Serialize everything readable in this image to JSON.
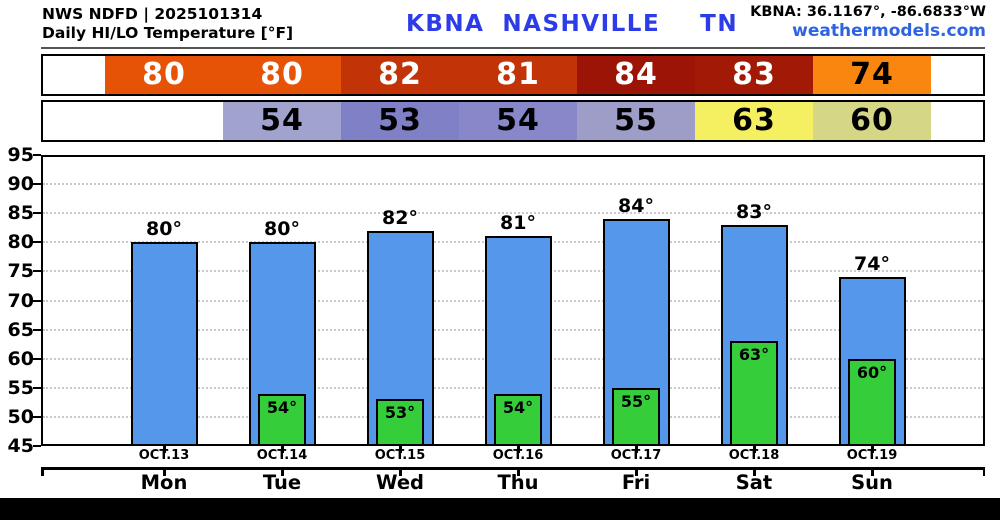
{
  "header": {
    "model_line": "NWS NDFD | 2025101314",
    "product_line": "Daily HI/LO Temperature [°F]",
    "station_id": "KBNA",
    "station_name": "NASHVILLE",
    "station_state": "TN",
    "coords": "KBNA: 36.1167°, -86.6833°W",
    "site": "weathermodels.com",
    "title_color": "#2b3ce8",
    "site_color": "#2e63e2"
  },
  "temp_strip": {
    "hi_row": [
      {
        "value": "",
        "bg": "#ffffff",
        "fg": "#000000"
      },
      {
        "value": "80",
        "bg": "#e65306",
        "fg": "#ffffff"
      },
      {
        "value": "80",
        "bg": "#e65306",
        "fg": "#ffffff"
      },
      {
        "value": "82",
        "bg": "#c23307",
        "fg": "#ffffff"
      },
      {
        "value": "81",
        "bg": "#c23307",
        "fg": "#ffffff"
      },
      {
        "value": "84",
        "bg": "#9c1405",
        "fg": "#ffffff"
      },
      {
        "value": "83",
        "bg": "#a21a06",
        "fg": "#ffffff"
      },
      {
        "value": "74",
        "bg": "#f9860f",
        "fg": "#000000"
      },
      {
        "value": "",
        "bg": "#ffffff",
        "fg": "#000000"
      }
    ],
    "lo_row": [
      {
        "value": "",
        "bg": "#ffffff",
        "fg": "#000000"
      },
      {
        "value": "54",
        "bg": "#a2a2ce",
        "fg": "#000000"
      },
      {
        "value": "53",
        "bg": "#8080c6",
        "fg": "#000000"
      },
      {
        "value": "54",
        "bg": "#8787c9",
        "fg": "#000000"
      },
      {
        "value": "55",
        "bg": "#9d9dc8",
        "fg": "#000000"
      },
      {
        "value": "63",
        "bg": "#f5ef62",
        "fg": "#000000"
      },
      {
        "value": "60",
        "bg": "#d5d787",
        "fg": "#000000"
      },
      {
        "value": "",
        "bg": "#ffffff",
        "fg": "#000000"
      }
    ]
  },
  "chart_data": {
    "type": "bar",
    "title": "Daily HI/LO Temperature [°F]",
    "station": "KBNA NASHVILLE TN",
    "categories": [
      "Mon",
      "Tue",
      "Wed",
      "Thu",
      "Fri",
      "Sat",
      "Sun"
    ],
    "dates": [
      "OCT.13",
      "OCT.14",
      "OCT.15",
      "OCT.16",
      "OCT.17",
      "OCT.18",
      "OCT.19"
    ],
    "series": [
      {
        "name": "High",
        "color": "#5597ea",
        "values": [
          80,
          80,
          82,
          81,
          84,
          83,
          74
        ]
      },
      {
        "name": "Low",
        "color": "#36cd3b",
        "values": [
          null,
          54,
          53,
          54,
          55,
          63,
          60
        ]
      }
    ],
    "ylim": [
      45,
      95
    ],
    "ytick_step": 5,
    "value_suffix": "°",
    "grid": "dotted-horizontal",
    "legend": "none"
  }
}
